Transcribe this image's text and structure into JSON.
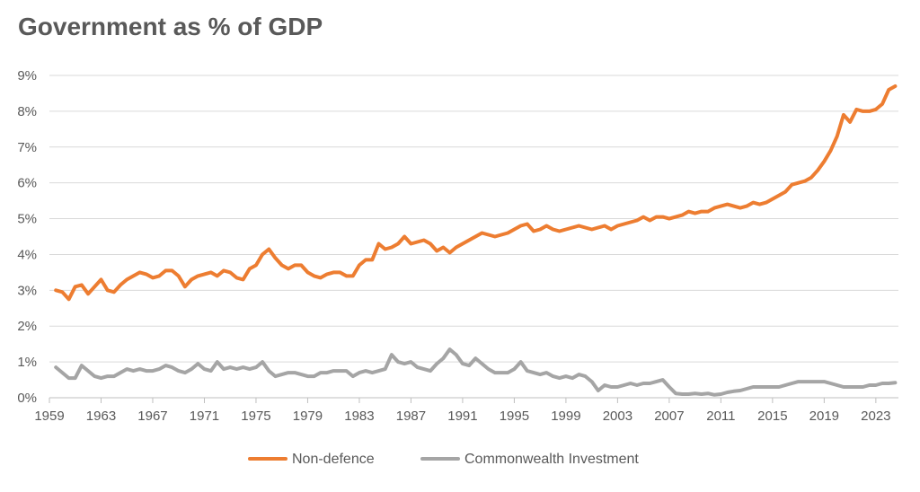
{
  "chart_data": {
    "type": "line",
    "title": "Government as % of GDP",
    "xlabel": "",
    "ylabel": "",
    "xlim": [
      1959,
      2024.75
    ],
    "ylim": [
      0,
      9
    ],
    "x_ticks": [
      1959,
      1963,
      1967,
      1971,
      1975,
      1979,
      1983,
      1987,
      1991,
      1995,
      1999,
      2003,
      2007,
      2011,
      2015,
      2019,
      2023
    ],
    "y_ticks": [
      "0%",
      "1%",
      "2%",
      "3%",
      "4%",
      "5%",
      "6%",
      "7%",
      "8%",
      "9%"
    ],
    "grid": "horizontal",
    "legend": "bottom",
    "series": [
      {
        "name": "Non-defence",
        "color": "#ED7D31",
        "points": [
          [
            1959.5,
            3.0
          ],
          [
            1960.0,
            2.95
          ],
          [
            1960.5,
            2.75
          ],
          [
            1961.0,
            3.1
          ],
          [
            1961.5,
            3.15
          ],
          [
            1962.0,
            2.9
          ],
          [
            1962.5,
            3.1
          ],
          [
            1963.0,
            3.3
          ],
          [
            1963.5,
            3.0
          ],
          [
            1964.0,
            2.95
          ],
          [
            1964.5,
            3.15
          ],
          [
            1965.0,
            3.3
          ],
          [
            1965.5,
            3.4
          ],
          [
            1966.0,
            3.5
          ],
          [
            1966.5,
            3.45
          ],
          [
            1967.0,
            3.35
          ],
          [
            1967.5,
            3.4
          ],
          [
            1968.0,
            3.55
          ],
          [
            1968.5,
            3.55
          ],
          [
            1969.0,
            3.4
          ],
          [
            1969.5,
            3.1
          ],
          [
            1970.0,
            3.3
          ],
          [
            1970.5,
            3.4
          ],
          [
            1971.0,
            3.45
          ],
          [
            1971.5,
            3.5
          ],
          [
            1972.0,
            3.4
          ],
          [
            1972.5,
            3.55
          ],
          [
            1973.0,
            3.5
          ],
          [
            1973.5,
            3.35
          ],
          [
            1974.0,
            3.3
          ],
          [
            1974.5,
            3.6
          ],
          [
            1975.0,
            3.7
          ],
          [
            1975.5,
            4.0
          ],
          [
            1976.0,
            4.15
          ],
          [
            1976.5,
            3.9
          ],
          [
            1977.0,
            3.7
          ],
          [
            1977.5,
            3.6
          ],
          [
            1978.0,
            3.7
          ],
          [
            1978.5,
            3.7
          ],
          [
            1979.0,
            3.5
          ],
          [
            1979.5,
            3.4
          ],
          [
            1980.0,
            3.35
          ],
          [
            1980.5,
            3.45
          ],
          [
            1981.0,
            3.5
          ],
          [
            1981.5,
            3.5
          ],
          [
            1982.0,
            3.4
          ],
          [
            1982.5,
            3.4
          ],
          [
            1983.0,
            3.7
          ],
          [
            1983.5,
            3.85
          ],
          [
            1984.0,
            3.85
          ],
          [
            1984.5,
            4.3
          ],
          [
            1985.0,
            4.15
          ],
          [
            1985.5,
            4.2
          ],
          [
            1986.0,
            4.3
          ],
          [
            1986.5,
            4.5
          ],
          [
            1987.0,
            4.3
          ],
          [
            1987.5,
            4.35
          ],
          [
            1988.0,
            4.4
          ],
          [
            1988.5,
            4.3
          ],
          [
            1989.0,
            4.1
          ],
          [
            1989.5,
            4.2
          ],
          [
            1990.0,
            4.05
          ],
          [
            1990.5,
            4.2
          ],
          [
            1991.0,
            4.3
          ],
          [
            1991.5,
            4.4
          ],
          [
            1992.0,
            4.5
          ],
          [
            1992.5,
            4.6
          ],
          [
            1993.0,
            4.55
          ],
          [
            1993.5,
            4.5
          ],
          [
            1994.0,
            4.55
          ],
          [
            1994.5,
            4.6
          ],
          [
            1995.0,
            4.7
          ],
          [
            1995.5,
            4.8
          ],
          [
            1996.0,
            4.85
          ],
          [
            1996.5,
            4.65
          ],
          [
            1997.0,
            4.7
          ],
          [
            1997.5,
            4.8
          ],
          [
            1998.0,
            4.7
          ],
          [
            1998.5,
            4.65
          ],
          [
            1999.0,
            4.7
          ],
          [
            1999.5,
            4.75
          ],
          [
            2000.0,
            4.8
          ],
          [
            2000.5,
            4.75
          ],
          [
            2001.0,
            4.7
          ],
          [
            2001.5,
            4.75
          ],
          [
            2002.0,
            4.8
          ],
          [
            2002.5,
            4.7
          ],
          [
            2003.0,
            4.8
          ],
          [
            2003.5,
            4.85
          ],
          [
            2004.0,
            4.9
          ],
          [
            2004.5,
            4.95
          ],
          [
            2005.0,
            5.05
          ],
          [
            2005.5,
            4.95
          ],
          [
            2006.0,
            5.05
          ],
          [
            2006.5,
            5.05
          ],
          [
            2007.0,
            5.0
          ],
          [
            2007.5,
            5.05
          ],
          [
            2008.0,
            5.1
          ],
          [
            2008.5,
            5.2
          ],
          [
            2009.0,
            5.15
          ],
          [
            2009.5,
            5.2
          ],
          [
            2010.0,
            5.2
          ],
          [
            2010.5,
            5.3
          ],
          [
            2011.0,
            5.35
          ],
          [
            2011.5,
            5.4
          ],
          [
            2012.0,
            5.35
          ],
          [
            2012.5,
            5.3
          ],
          [
            2013.0,
            5.35
          ],
          [
            2013.5,
            5.45
          ],
          [
            2014.0,
            5.4
          ],
          [
            2014.5,
            5.45
          ],
          [
            2015.0,
            5.55
          ],
          [
            2015.5,
            5.65
          ],
          [
            2016.0,
            5.75
          ],
          [
            2016.5,
            5.95
          ],
          [
            2017.0,
            6.0
          ],
          [
            2017.5,
            6.05
          ],
          [
            2018.0,
            6.15
          ],
          [
            2018.5,
            6.35
          ],
          [
            2019.0,
            6.6
          ],
          [
            2019.5,
            6.9
          ],
          [
            2020.0,
            7.3
          ],
          [
            2020.5,
            7.9
          ],
          [
            2021.0,
            7.7
          ],
          [
            2021.5,
            8.05
          ],
          [
            2022.0,
            8.0
          ],
          [
            2022.5,
            8.0
          ],
          [
            2023.0,
            8.05
          ],
          [
            2023.5,
            8.2
          ],
          [
            2024.0,
            8.6
          ],
          [
            2024.5,
            8.7
          ]
        ]
      },
      {
        "name": "Commonwealth Investment",
        "color": "#A5A5A5",
        "points": [
          [
            1959.5,
            0.85
          ],
          [
            1960.0,
            0.7
          ],
          [
            1960.5,
            0.55
          ],
          [
            1961.0,
            0.55
          ],
          [
            1961.5,
            0.9
          ],
          [
            1962.0,
            0.75
          ],
          [
            1962.5,
            0.6
          ],
          [
            1963.0,
            0.55
          ],
          [
            1963.5,
            0.6
          ],
          [
            1964.0,
            0.6
          ],
          [
            1964.5,
            0.7
          ],
          [
            1965.0,
            0.8
          ],
          [
            1965.5,
            0.75
          ],
          [
            1966.0,
            0.8
          ],
          [
            1966.5,
            0.75
          ],
          [
            1967.0,
            0.75
          ],
          [
            1967.5,
            0.8
          ],
          [
            1968.0,
            0.9
          ],
          [
            1968.5,
            0.85
          ],
          [
            1969.0,
            0.75
          ],
          [
            1969.5,
            0.7
          ],
          [
            1970.0,
            0.8
          ],
          [
            1970.5,
            0.95
          ],
          [
            1971.0,
            0.8
          ],
          [
            1971.5,
            0.75
          ],
          [
            1972.0,
            1.0
          ],
          [
            1972.5,
            0.8
          ],
          [
            1973.0,
            0.85
          ],
          [
            1973.5,
            0.8
          ],
          [
            1974.0,
            0.85
          ],
          [
            1974.5,
            0.8
          ],
          [
            1975.0,
            0.85
          ],
          [
            1975.5,
            1.0
          ],
          [
            1976.0,
            0.75
          ],
          [
            1976.5,
            0.6
          ],
          [
            1977.0,
            0.65
          ],
          [
            1977.5,
            0.7
          ],
          [
            1978.0,
            0.7
          ],
          [
            1978.5,
            0.65
          ],
          [
            1979.0,
            0.6
          ],
          [
            1979.5,
            0.6
          ],
          [
            1980.0,
            0.7
          ],
          [
            1980.5,
            0.7
          ],
          [
            1981.0,
            0.75
          ],
          [
            1981.5,
            0.75
          ],
          [
            1982.0,
            0.75
          ],
          [
            1982.5,
            0.6
          ],
          [
            1983.0,
            0.7
          ],
          [
            1983.5,
            0.75
          ],
          [
            1984.0,
            0.7
          ],
          [
            1984.5,
            0.75
          ],
          [
            1985.0,
            0.8
          ],
          [
            1985.5,
            1.2
          ],
          [
            1986.0,
            1.0
          ],
          [
            1986.5,
            0.95
          ],
          [
            1987.0,
            1.0
          ],
          [
            1987.5,
            0.85
          ],
          [
            1988.0,
            0.8
          ],
          [
            1988.5,
            0.75
          ],
          [
            1989.0,
            0.95
          ],
          [
            1989.5,
            1.1
          ],
          [
            1990.0,
            1.35
          ],
          [
            1990.5,
            1.2
          ],
          [
            1991.0,
            0.95
          ],
          [
            1991.5,
            0.9
          ],
          [
            1992.0,
            1.1
          ],
          [
            1992.5,
            0.95
          ],
          [
            1993.0,
            0.8
          ],
          [
            1993.5,
            0.7
          ],
          [
            1994.0,
            0.7
          ],
          [
            1994.5,
            0.7
          ],
          [
            1995.0,
            0.8
          ],
          [
            1995.5,
            1.0
          ],
          [
            1996.0,
            0.75
          ],
          [
            1996.5,
            0.7
          ],
          [
            1997.0,
            0.65
          ],
          [
            1997.5,
            0.7
          ],
          [
            1998.0,
            0.6
          ],
          [
            1998.5,
            0.55
          ],
          [
            1999.0,
            0.6
          ],
          [
            1999.5,
            0.55
          ],
          [
            2000.0,
            0.65
          ],
          [
            2000.5,
            0.6
          ],
          [
            2001.0,
            0.45
          ],
          [
            2001.5,
            0.2
          ],
          [
            2002.0,
            0.35
          ],
          [
            2002.5,
            0.3
          ],
          [
            2003.0,
            0.3
          ],
          [
            2003.5,
            0.35
          ],
          [
            2004.0,
            0.4
          ],
          [
            2004.5,
            0.35
          ],
          [
            2005.0,
            0.4
          ],
          [
            2005.5,
            0.4
          ],
          [
            2006.0,
            0.45
          ],
          [
            2006.5,
            0.5
          ],
          [
            2007.0,
            0.3
          ],
          [
            2007.5,
            0.12
          ],
          [
            2008.0,
            0.1
          ],
          [
            2008.5,
            0.1
          ],
          [
            2009.0,
            0.12
          ],
          [
            2009.5,
            0.1
          ],
          [
            2010.0,
            0.12
          ],
          [
            2010.5,
            0.08
          ],
          [
            2011.0,
            0.1
          ],
          [
            2011.5,
            0.15
          ],
          [
            2012.0,
            0.18
          ],
          [
            2012.5,
            0.2
          ],
          [
            2013.0,
            0.25
          ],
          [
            2013.5,
            0.3
          ],
          [
            2014.0,
            0.3
          ],
          [
            2014.5,
            0.3
          ],
          [
            2015.0,
            0.3
          ],
          [
            2015.5,
            0.3
          ],
          [
            2016.0,
            0.35
          ],
          [
            2016.5,
            0.4
          ],
          [
            2017.0,
            0.45
          ],
          [
            2017.5,
            0.45
          ],
          [
            2018.0,
            0.45
          ],
          [
            2018.5,
            0.45
          ],
          [
            2019.0,
            0.45
          ],
          [
            2019.5,
            0.4
          ],
          [
            2020.0,
            0.35
          ],
          [
            2020.5,
            0.3
          ],
          [
            2021.0,
            0.3
          ],
          [
            2021.5,
            0.3
          ],
          [
            2022.0,
            0.3
          ],
          [
            2022.5,
            0.35
          ],
          [
            2023.0,
            0.35
          ],
          [
            2023.5,
            0.4
          ],
          [
            2024.0,
            0.4
          ],
          [
            2024.5,
            0.42
          ]
        ]
      }
    ]
  }
}
